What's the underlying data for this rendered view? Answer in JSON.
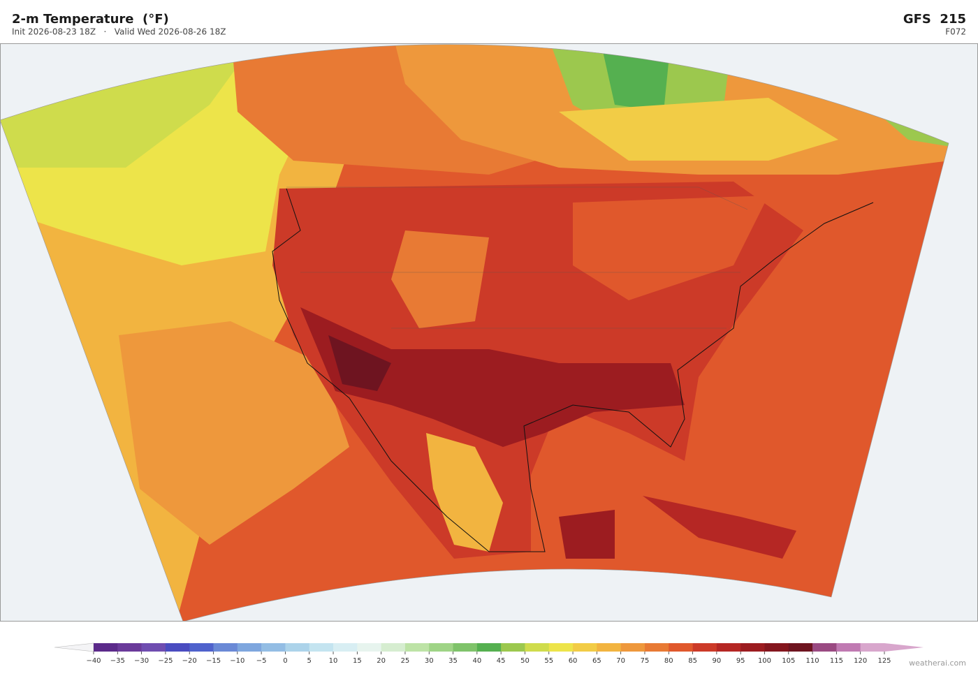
{
  "header": {
    "title": "2-m Temperature  (°F)",
    "subtitle": "Init 2026-08-23 18Z   ·   Valid Wed 2026-08-26 18Z",
    "model": "GFS  215",
    "forecast_hour": "F072"
  },
  "colorbar": {
    "ticks": [
      {
        "value": -40,
        "label": "−40"
      },
      {
        "value": -35,
        "label": "−35"
      },
      {
        "value": -30,
        "label": "−30"
      },
      {
        "value": -25,
        "label": "−25"
      },
      {
        "value": -20,
        "label": "−20"
      },
      {
        "value": -15,
        "label": "−15"
      },
      {
        "value": -10,
        "label": "−10"
      },
      {
        "value": -5,
        "label": "−5"
      },
      0,
      5,
      10,
      15,
      20,
      25,
      30,
      35,
      40,
      45,
      50,
      55,
      60,
      65,
      70,
      75,
      80,
      85,
      90,
      95,
      100,
      105,
      110,
      115,
      120,
      125
    ],
    "colors": [
      "#5b2a8a",
      "#6a3a9a",
      "#6f4db0",
      "#4a4cc0",
      "#4f62cc",
      "#6a89d6",
      "#7ea6de",
      "#93bde4",
      "#acd3ea",
      "#c4e4f0",
      "#d8eef3",
      "#e7f4ee",
      "#d6edd0",
      "#bde3a6",
      "#9fd486",
      "#7fc36a",
      "#55b050",
      "#9cc84e",
      "#cfdc4c",
      "#ede44a",
      "#f2cc46",
      "#f2b440",
      "#ee983c",
      "#e87a34",
      "#e0582c",
      "#cc3a28",
      "#b52724",
      "#9c1c20",
      "#84161e",
      "#6e1420",
      "#9a4a82",
      "#c07ab2",
      "#d8a6cc"
    ],
    "under_color": "#f4f4f6",
    "over_color": "#d8a6cc"
  },
  "footer": {
    "watermark": "weatherai.com"
  }
}
